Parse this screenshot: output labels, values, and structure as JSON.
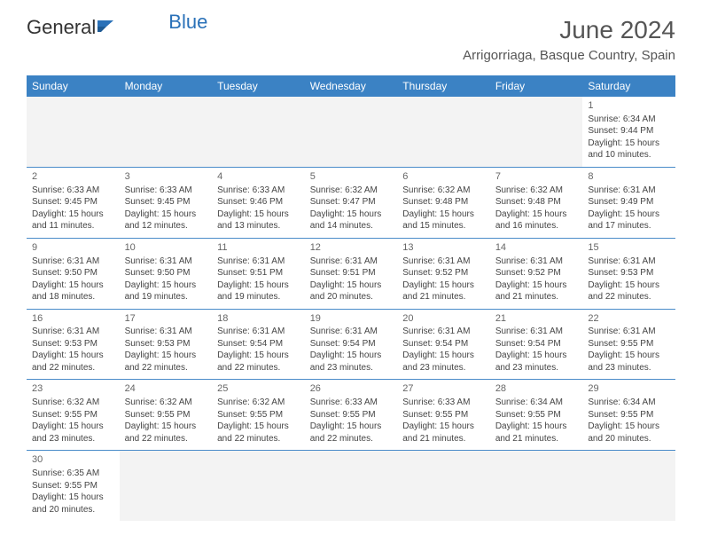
{
  "logo": {
    "part1": "General",
    "part2": "Blue"
  },
  "title": "June 2024",
  "location": "Arrigorriaga, Basque Country, Spain",
  "colors": {
    "header_bg": "#3b82c4",
    "header_text": "#ffffff",
    "row_border": "#4a8cc9",
    "empty_bg": "#f3f3f3",
    "logo_accent": "#2a71b8",
    "text": "#444444"
  },
  "weekdays": [
    "Sunday",
    "Monday",
    "Tuesday",
    "Wednesday",
    "Thursday",
    "Friday",
    "Saturday"
  ],
  "weeks": [
    [
      null,
      null,
      null,
      null,
      null,
      null,
      {
        "d": "1",
        "sr": "6:34 AM",
        "ss": "9:44 PM",
        "dl": "15 hours and 10 minutes."
      }
    ],
    [
      {
        "d": "2",
        "sr": "6:33 AM",
        "ss": "9:45 PM",
        "dl": "15 hours and 11 minutes."
      },
      {
        "d": "3",
        "sr": "6:33 AM",
        "ss": "9:45 PM",
        "dl": "15 hours and 12 minutes."
      },
      {
        "d": "4",
        "sr": "6:33 AM",
        "ss": "9:46 PM",
        "dl": "15 hours and 13 minutes."
      },
      {
        "d": "5",
        "sr": "6:32 AM",
        "ss": "9:47 PM",
        "dl": "15 hours and 14 minutes."
      },
      {
        "d": "6",
        "sr": "6:32 AM",
        "ss": "9:48 PM",
        "dl": "15 hours and 15 minutes."
      },
      {
        "d": "7",
        "sr": "6:32 AM",
        "ss": "9:48 PM",
        "dl": "15 hours and 16 minutes."
      },
      {
        "d": "8",
        "sr": "6:31 AM",
        "ss": "9:49 PM",
        "dl": "15 hours and 17 minutes."
      }
    ],
    [
      {
        "d": "9",
        "sr": "6:31 AM",
        "ss": "9:50 PM",
        "dl": "15 hours and 18 minutes."
      },
      {
        "d": "10",
        "sr": "6:31 AM",
        "ss": "9:50 PM",
        "dl": "15 hours and 19 minutes."
      },
      {
        "d": "11",
        "sr": "6:31 AM",
        "ss": "9:51 PM",
        "dl": "15 hours and 19 minutes."
      },
      {
        "d": "12",
        "sr": "6:31 AM",
        "ss": "9:51 PM",
        "dl": "15 hours and 20 minutes."
      },
      {
        "d": "13",
        "sr": "6:31 AM",
        "ss": "9:52 PM",
        "dl": "15 hours and 21 minutes."
      },
      {
        "d": "14",
        "sr": "6:31 AM",
        "ss": "9:52 PM",
        "dl": "15 hours and 21 minutes."
      },
      {
        "d": "15",
        "sr": "6:31 AM",
        "ss": "9:53 PM",
        "dl": "15 hours and 22 minutes."
      }
    ],
    [
      {
        "d": "16",
        "sr": "6:31 AM",
        "ss": "9:53 PM",
        "dl": "15 hours and 22 minutes."
      },
      {
        "d": "17",
        "sr": "6:31 AM",
        "ss": "9:53 PM",
        "dl": "15 hours and 22 minutes."
      },
      {
        "d": "18",
        "sr": "6:31 AM",
        "ss": "9:54 PM",
        "dl": "15 hours and 22 minutes."
      },
      {
        "d": "19",
        "sr": "6:31 AM",
        "ss": "9:54 PM",
        "dl": "15 hours and 23 minutes."
      },
      {
        "d": "20",
        "sr": "6:31 AM",
        "ss": "9:54 PM",
        "dl": "15 hours and 23 minutes."
      },
      {
        "d": "21",
        "sr": "6:31 AM",
        "ss": "9:54 PM",
        "dl": "15 hours and 23 minutes."
      },
      {
        "d": "22",
        "sr": "6:31 AM",
        "ss": "9:55 PM",
        "dl": "15 hours and 23 minutes."
      }
    ],
    [
      {
        "d": "23",
        "sr": "6:32 AM",
        "ss": "9:55 PM",
        "dl": "15 hours and 23 minutes."
      },
      {
        "d": "24",
        "sr": "6:32 AM",
        "ss": "9:55 PM",
        "dl": "15 hours and 22 minutes."
      },
      {
        "d": "25",
        "sr": "6:32 AM",
        "ss": "9:55 PM",
        "dl": "15 hours and 22 minutes."
      },
      {
        "d": "26",
        "sr": "6:33 AM",
        "ss": "9:55 PM",
        "dl": "15 hours and 22 minutes."
      },
      {
        "d": "27",
        "sr": "6:33 AM",
        "ss": "9:55 PM",
        "dl": "15 hours and 21 minutes."
      },
      {
        "d": "28",
        "sr": "6:34 AM",
        "ss": "9:55 PM",
        "dl": "15 hours and 21 minutes."
      },
      {
        "d": "29",
        "sr": "6:34 AM",
        "ss": "9:55 PM",
        "dl": "15 hours and 20 minutes."
      }
    ],
    [
      {
        "d": "30",
        "sr": "6:35 AM",
        "ss": "9:55 PM",
        "dl": "15 hours and 20 minutes."
      },
      null,
      null,
      null,
      null,
      null,
      null
    ]
  ],
  "labels": {
    "sunrise": "Sunrise:",
    "sunset": "Sunset:",
    "daylight": "Daylight:"
  }
}
